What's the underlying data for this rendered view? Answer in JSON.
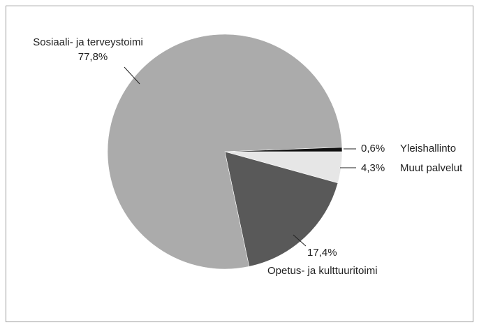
{
  "chart_data": {
    "type": "pie",
    "categories": [
      "Muut palvelut",
      "Opetus- ja kulttuuritoimi",
      "Sosiaali- ja terveystoimi",
      "Yleishallinto"
    ],
    "values": [
      4.3,
      17.4,
      77.8,
      0.6
    ],
    "value_labels": [
      "4,3%",
      "17,4%",
      "77,8%",
      "0,6%"
    ],
    "colors": [
      "#e6e6e6",
      "#595959",
      "#ababab",
      "#111111"
    ]
  }
}
